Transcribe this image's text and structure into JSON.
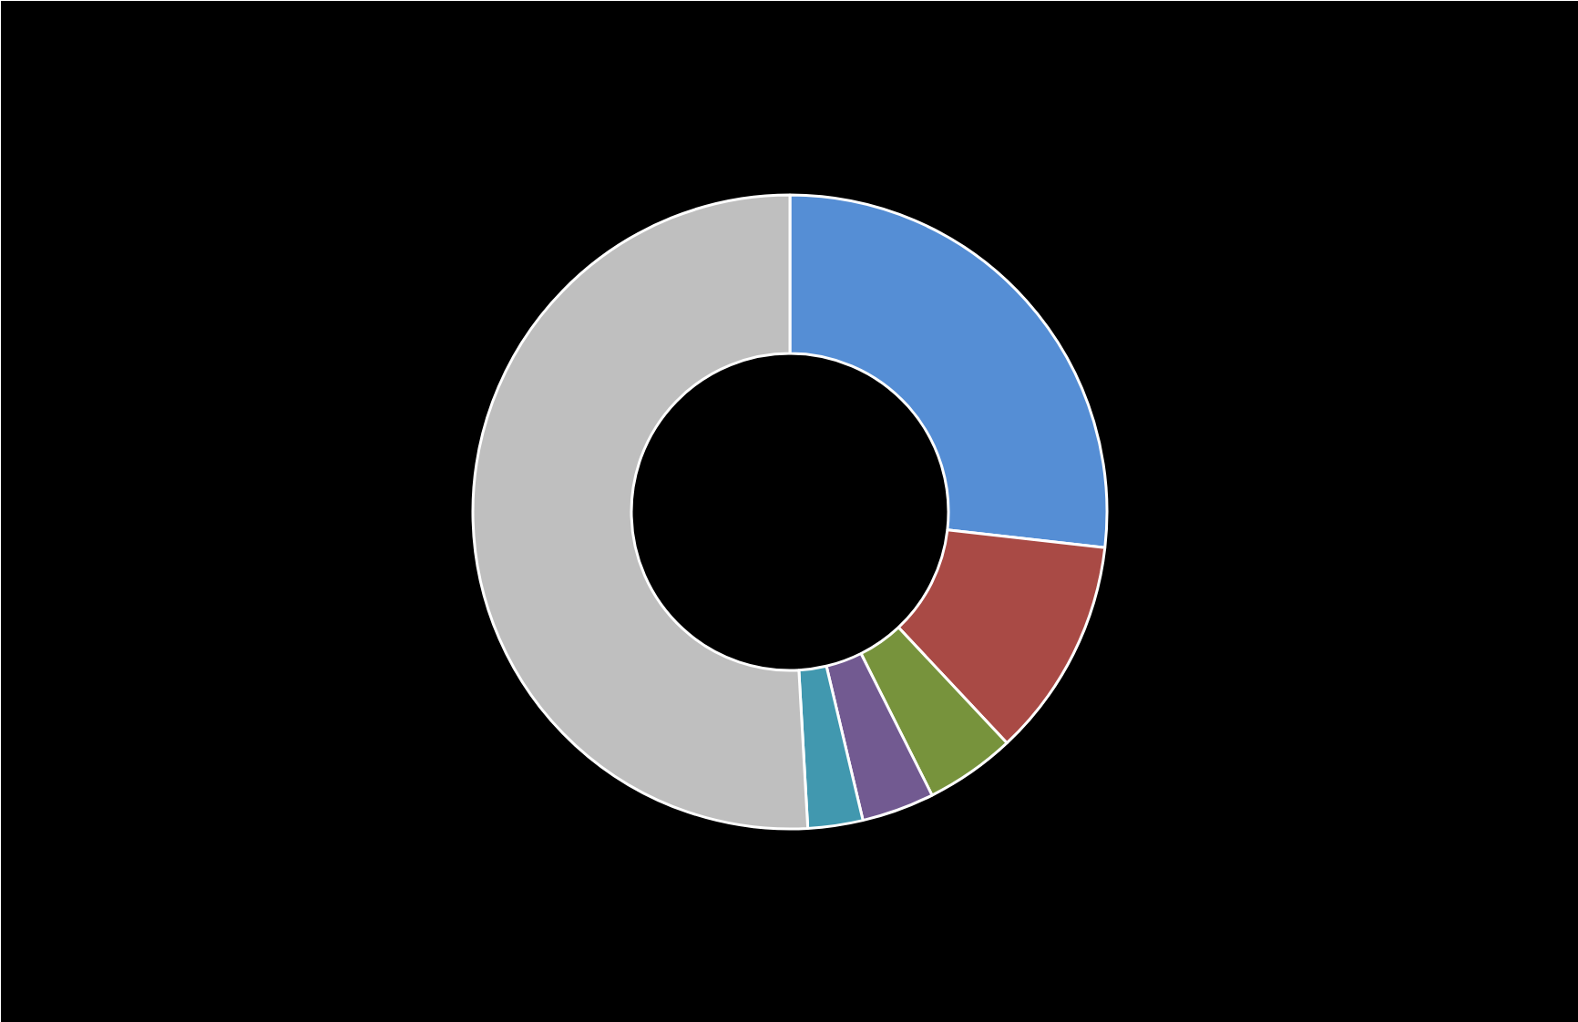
{
  "chart_data": {
    "type": "donut",
    "categories": [
      null,
      null,
      null,
      null,
      null,
      null
    ],
    "values": [
      26.8,
      11.2,
      4.6,
      3.7,
      2.8,
      50.9
    ],
    "colors": [
      "#558ed5",
      "#a94a45",
      "#77933c",
      "#725a91",
      "#4198af",
      "#bfbfbf"
    ]
  }
}
